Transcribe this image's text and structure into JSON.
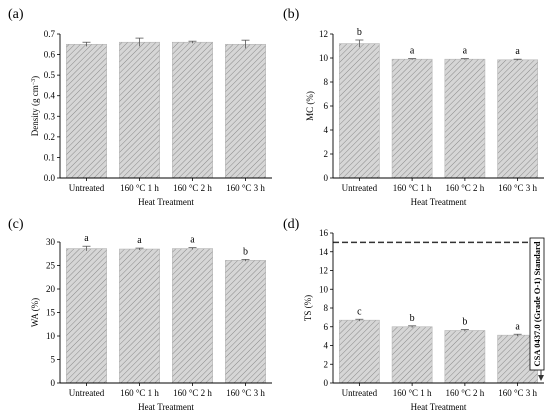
{
  "figure": {
    "x_axis_label": "Heat Treatment",
    "categories": [
      "Untreated",
      "160 °C 1 h",
      "160 °C 2 h",
      "160 °C 3 h"
    ]
  },
  "chart_data": [
    {
      "type": "bar",
      "panel": "(a)",
      "categories": [
        "Untreated",
        "160 °C 1 h",
        "160 °C 2 h",
        "160 °C 3 h"
      ],
      "values": [
        0.65,
        0.66,
        0.66,
        0.65
      ],
      "errors": [
        0.01,
        0.02,
        0.005,
        0.02
      ],
      "significance": [],
      "xlabel": "Heat Treatment",
      "ylabel": "Density (g cm⁻³)",
      "ylim": [
        0,
        0.7
      ],
      "yticks": [
        0.0,
        0.1,
        0.2,
        0.3,
        0.4,
        0.5,
        0.6,
        0.7
      ],
      "ytick_labels": [
        "0.0",
        "0.1",
        "0.2",
        "0.3",
        "0.4",
        "0.5",
        "0.6",
        "0.7"
      ],
      "bar_color": "#d3d3d3",
      "hatch": "diagonal"
    },
    {
      "type": "bar",
      "panel": "(b)",
      "categories": [
        "Untreated",
        "160 °C 1 h",
        "160 °C 2 h",
        "160 °C 3 h"
      ],
      "values": [
        11.2,
        9.9,
        9.9,
        9.85
      ],
      "errors": [
        0.3,
        0.05,
        0.05,
        0.05
      ],
      "significance": [
        "b",
        "a",
        "a",
        "a"
      ],
      "xlabel": "Heat Treatment",
      "ylabel": "MC (%)",
      "ylim": [
        0,
        12
      ],
      "yticks": [
        0,
        2,
        4,
        6,
        8,
        10,
        12
      ],
      "ytick_labels": [
        "0",
        "2",
        "4",
        "6",
        "8",
        "10",
        "12"
      ],
      "bar_color": "#d3d3d3",
      "hatch": "diagonal"
    },
    {
      "type": "bar",
      "panel": "(c)",
      "categories": [
        "Untreated",
        "160 °C 1 h",
        "160 °C 2 h",
        "160 °C 3 h"
      ],
      "values": [
        28.6,
        28.5,
        28.6,
        26.1
      ],
      "errors": [
        0.5,
        0.2,
        0.2,
        0.2
      ],
      "significance": [
        "a",
        "a",
        "a",
        "b"
      ],
      "xlabel": "Heat Treatment",
      "ylabel": "WA (%)",
      "ylim": [
        0,
        30
      ],
      "yticks": [
        0,
        5,
        10,
        15,
        20,
        25,
        30
      ],
      "ytick_labels": [
        "0",
        "5",
        "10",
        "15",
        "20",
        "25",
        "30"
      ],
      "bar_color": "#d3d3d3",
      "hatch": "diagonal"
    },
    {
      "type": "bar",
      "panel": "(d)",
      "categories": [
        "Untreated",
        "160 °C 1 h",
        "160 °C 2 h",
        "160 °C 3 h"
      ],
      "values": [
        6.7,
        6.0,
        5.6,
        5.1
      ],
      "errors": [
        0.1,
        0.1,
        0.1,
        0.1
      ],
      "significance": [
        "c",
        "b",
        "b",
        "a"
      ],
      "xlabel": "Heat Treatment",
      "ylabel": "TS (%)",
      "ylim": [
        0,
        16
      ],
      "yticks": [
        0,
        2,
        4,
        6,
        8,
        10,
        12,
        14,
        16
      ],
      "ytick_labels": [
        "0",
        "2",
        "4",
        "6",
        "8",
        "10",
        "12",
        "14",
        "16"
      ],
      "bar_color": "#d3d3d3",
      "hatch": "diagonal",
      "reference_line": {
        "value": 15,
        "label": "CSA 0437.0 (Grade O-1) Standard",
        "style": "dashed"
      }
    }
  ]
}
